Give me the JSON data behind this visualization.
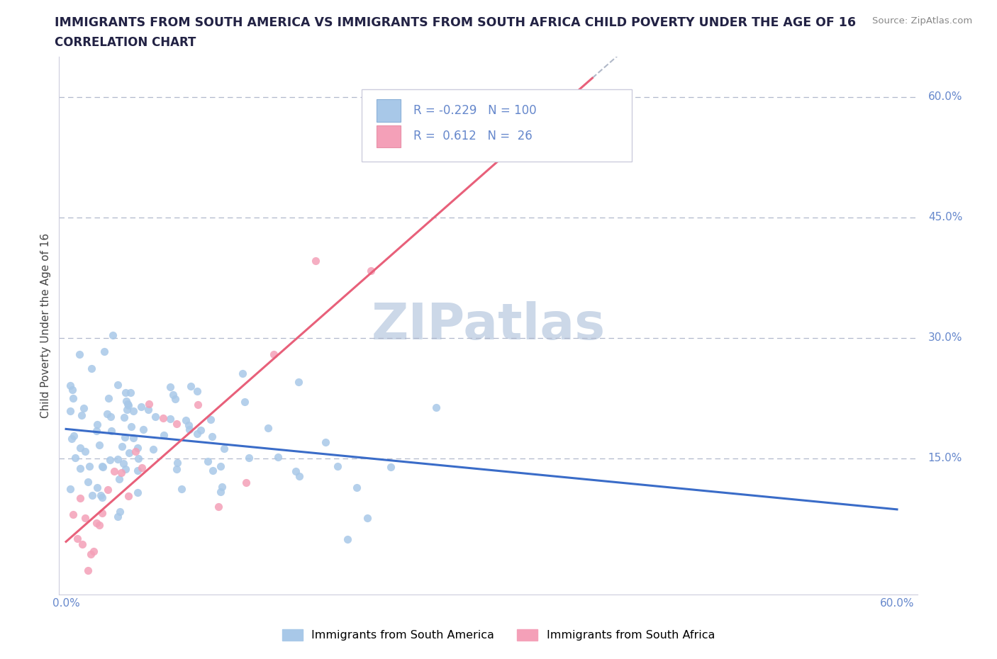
{
  "title": "IMMIGRANTS FROM SOUTH AMERICA VS IMMIGRANTS FROM SOUTH AFRICA CHILD POVERTY UNDER THE AGE OF 16",
  "subtitle": "CORRELATION CHART",
  "source": "Source: ZipAtlas.com",
  "ylabel": "Child Poverty Under the Age of 16",
  "xlim": [
    -0.005,
    0.615
  ],
  "ylim": [
    -0.02,
    0.65
  ],
  "xtick_positions": [
    0.0,
    0.1,
    0.2,
    0.3,
    0.4,
    0.5,
    0.6
  ],
  "xticklabels": [
    "0.0%",
    "",
    "",
    "",
    "",
    "",
    "60.0%"
  ],
  "ytick_positions": [
    0.15,
    0.3,
    0.45,
    0.6
  ],
  "ytick_labels": [
    "15.0%",
    "30.0%",
    "45.0%",
    "60.0%"
  ],
  "R_blue": -0.229,
  "N_blue": 100,
  "R_pink": 0.612,
  "N_pink": 26,
  "color_blue": "#a8c8e8",
  "color_pink": "#f4a0b8",
  "line_color_blue": "#3a6cc8",
  "line_color_pink": "#e8607a",
  "line_color_dashed": "#b0b8c8",
  "legend_label_blue": "Immigrants from South America",
  "legend_label_pink": "Immigrants from South Africa",
  "title_color": "#222244",
  "axis_color": "#6688cc",
  "tick_color": "#6688cc",
  "grid_color": "#b0b8cc",
  "ylabel_color": "#444444",
  "source_color": "#888888",
  "watermark": "ZIPatlas",
  "watermark_color": "#ccd8e8"
}
